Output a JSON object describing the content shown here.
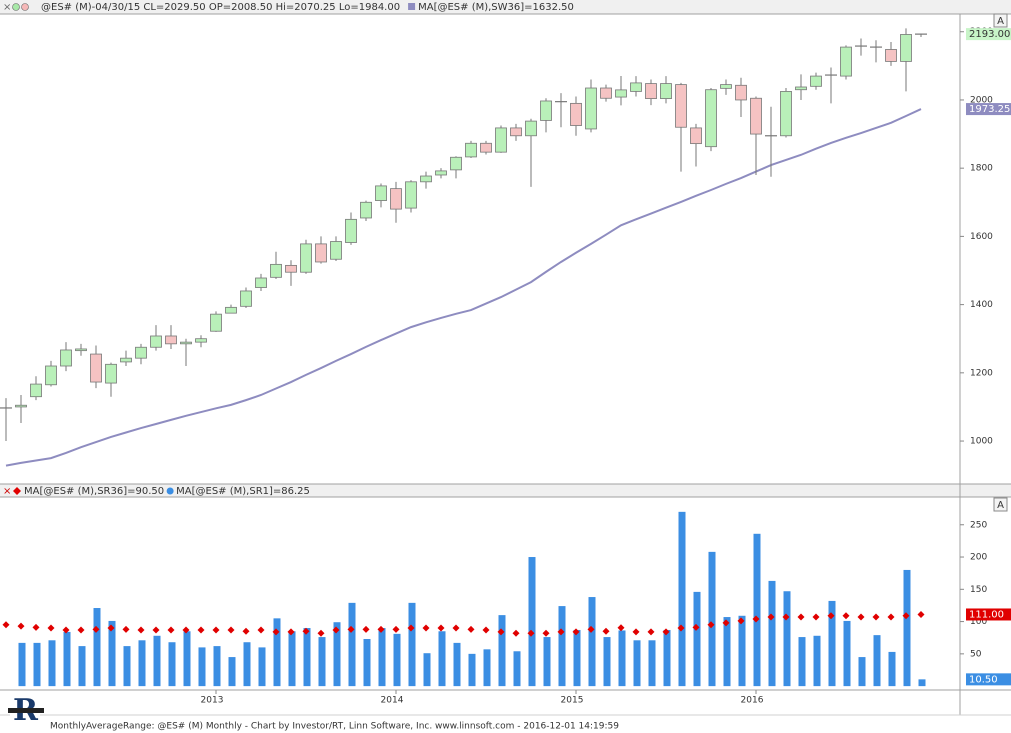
{
  "chart_data": [
    {
      "type": "candlestick",
      "legend": [
        "@ES# (M)-04/30/15 CL=2029.50 OP=2008.50 Hi=2070.25 Lo=1984.00"
      ],
      "categories": [
        null,
        null,
        null,
        null,
        null,
        null,
        null,
        null,
        null,
        null,
        null,
        null,
        null,
        null,
        null,
        null,
        null,
        null,
        null,
        null,
        null,
        null,
        null,
        null,
        null,
        null,
        null,
        null,
        null,
        null,
        null,
        null,
        null,
        null,
        null,
        null,
        null,
        null,
        null,
        null,
        null,
        null,
        null,
        null,
        null,
        null,
        null,
        null,
        null,
        null,
        null,
        null,
        null,
        null,
        null,
        null,
        null,
        null,
        null,
        null,
        null,
        null
      ],
      "open": [
        1095,
        1100,
        1130,
        1165,
        1220,
        1265,
        1255,
        1170,
        1232,
        1243,
        1275,
        1308,
        1285,
        1290,
        1322,
        1375,
        1395,
        1450,
        1480,
        1515,
        1495,
        1578,
        1533,
        1582,
        1654,
        1705,
        1740,
        1683,
        1760,
        1780,
        1795,
        1833,
        1873,
        1847,
        1918,
        1895,
        1940,
        1995,
        1990,
        1915,
        2035,
        2008.5,
        2025,
        2048,
        2004,
        2045,
        1918,
        1863,
        2034,
        2043,
        2005,
        1895,
        1895,
        2030,
        2040,
        2072,
        2070,
        2158,
        2152,
        2148,
        2113,
        2190
      ],
      "high": [
        1126,
        1135,
        1190,
        1235,
        1290,
        1285,
        1280,
        1230,
        1265,
        1285,
        1340,
        1340,
        1300,
        1310,
        1380,
        1400,
        1450,
        1490,
        1555,
        1530,
        1590,
        1600,
        1600,
        1670,
        1705,
        1755,
        1760,
        1765,
        1790,
        1800,
        1835,
        1880,
        1880,
        1925,
        1930,
        1945,
        2005,
        2020,
        2010,
        2060,
        2045,
        2070.25,
        2070,
        2060,
        2070,
        2050,
        1930,
        2035,
        2060,
        2065,
        2010,
        1980,
        2035,
        2075,
        2080,
        2095,
        2160,
        2180,
        2175,
        2170,
        2210,
        2195
      ],
      "low": [
        1000,
        1053,
        1120,
        1160,
        1205,
        1250,
        1155,
        1130,
        1220,
        1225,
        1265,
        1270,
        1220,
        1275,
        1320,
        1375,
        1390,
        1440,
        1475,
        1455,
        1490,
        1520,
        1528,
        1575,
        1645,
        1685,
        1640,
        1670,
        1740,
        1770,
        1770,
        1830,
        1840,
        1845,
        1880,
        1745,
        1905,
        1920,
        1895,
        1905,
        1995,
        1984,
        2010,
        1985,
        1990,
        1790,
        1805,
        1850,
        2015,
        1950,
        1780,
        1775,
        1890,
        2000,
        2030,
        1990,
        2060,
        2130,
        2110,
        2100,
        2025,
        2184.5
      ],
      "close": [
        1097,
        1105,
        1167,
        1220,
        1267,
        1270,
        1173,
        1225,
        1243,
        1275,
        1308,
        1285,
        1290,
        1300,
        1372,
        1392,
        1440,
        1478,
        1518,
        1495,
        1578,
        1525,
        1585,
        1650,
        1700,
        1748,
        1680,
        1760,
        1777,
        1792,
        1832,
        1873,
        1847,
        1918,
        1895,
        1938,
        1997,
        1995,
        1925,
        2035,
        2005,
        2029.5,
        2050,
        2004,
        2048,
        1920,
        1872,
        2030,
        2045,
        2000,
        1900,
        1895,
        2025,
        2038,
        2070,
        2073,
        2155,
        2158,
        2155,
        2113,
        2192,
        2193
      ],
      "last_label": "2193.00",
      "color_up": "#b9f0b9",
      "color_down": "#f5c3c3",
      "ma": {
        "name": "MA[@ES# (M),SW36]=1632.50",
        "color": "#8e8cc0",
        "last_label": "1973.25",
        "values": [
          928,
          936,
          943,
          950,
          965,
          982,
          997,
          1012,
          1025,
          1038,
          1050,
          1062,
          1074,
          1085,
          1096,
          1106,
          1120,
          1135,
          1154,
          1173,
          1194,
          1214,
          1235,
          1255,
          1276,
          1296,
          1315,
          1334,
          1348,
          1361,
          1373,
          1384,
          1403,
          1422,
          1444,
          1466,
          1496,
          1525,
          1552,
          1578,
          1605,
          1632.5,
          1650,
          1667,
          1684,
          1701,
          1719,
          1736,
          1754,
          1771,
          1790,
          1809,
          1824,
          1839,
          1857,
          1874,
          1889,
          1903,
          1918,
          1933,
          1953,
          1973.25
        ]
      },
      "ylim": [
        877,
        2252
      ],
      "yticks": [
        1000,
        1200,
        1400,
        1600,
        1800,
        2000,
        2200
      ]
    },
    {
      "type": "bar",
      "series": [
        {
          "name": "MA[@ES# (M),SR36]=90.50",
          "color": "#e00000",
          "marker": "diamond",
          "last_label": "111.00",
          "values": [
            95,
            93,
            91,
            90,
            87,
            87,
            88,
            90,
            88,
            87,
            87,
            87,
            87,
            87,
            87,
            87,
            85,
            87,
            84,
            84,
            85,
            82,
            87,
            88,
            88,
            88,
            88,
            90,
            90,
            90,
            90,
            88,
            87,
            84,
            82,
            82,
            82,
            84,
            84,
            88,
            85,
            90.5,
            84,
            84,
            84,
            90,
            91,
            95,
            98,
            101,
            104,
            107,
            107,
            107,
            107,
            109,
            109,
            107,
            107,
            107,
            109,
            111
          ]
        },
        {
          "name": "MA[@ES# (M),SR1]=86.25",
          "color": "#3b8ee3",
          "marker": "bar",
          "last_label": "10.50",
          "values": [
            null,
            67,
            67,
            71,
            84,
            62,
            121,
            101,
            62,
            71,
            78,
            68,
            85,
            60,
            62,
            45,
            68,
            60,
            105,
            85,
            90,
            76,
            99,
            129,
            73,
            90,
            81,
            129,
            51,
            85,
            67,
            50,
            57,
            110,
            54,
            200,
            76,
            124,
            87,
            138,
            76,
            86.25,
            71,
            71,
            87,
            270,
            146,
            208,
            107,
            109,
            236,
            163,
            147,
            76,
            78,
            132,
            101,
            45,
            79,
            53,
            180,
            10.5
          ]
        }
      ],
      "ylim": [
        -6,
        293
      ],
      "yticks": [
        50,
        100,
        150,
        200,
        250
      ],
      "xticks": [
        {
          "value": 14,
          "label": "2013"
        },
        {
          "value": 26,
          "label": "2014"
        },
        {
          "value": 38,
          "label": "2015"
        },
        {
          "value": 50,
          "label": "2016"
        }
      ]
    }
  ],
  "footer": "MonthlyAverageRange: @ES# (M) Monthly - Chart by Investor/RT, Linn Software, Inc. www.linnsoft.com - 2016-12-01 14:19:59",
  "scale_button": "A"
}
